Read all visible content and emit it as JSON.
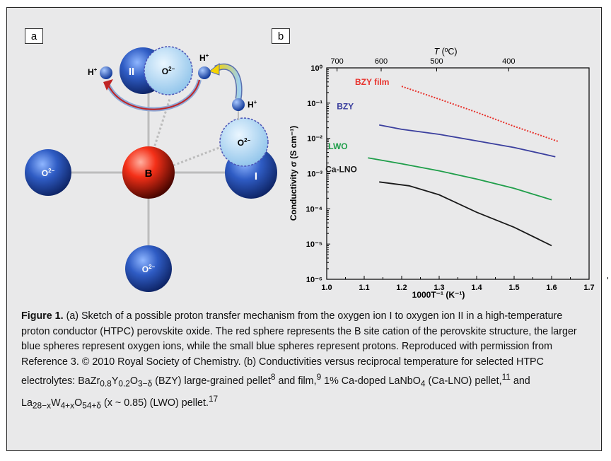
{
  "panel_a": {
    "label": "a",
    "atoms": {
      "b_cation": "B",
      "oxygen_i_label": "I",
      "oxygen_ii_label": "II",
      "oxygen_charge": "O",
      "charge_sup": "2−",
      "proton": "H",
      "proton_sup": "+"
    }
  },
  "panel_b": {
    "label": "b",
    "top_axis_label": "T",
    "top_axis_unit": " (ºC)",
    "top_ticks": [
      "700",
      "600",
      "500",
      "400"
    ],
    "ylabel": "Conductivity σ (S cm⁻¹)",
    "xlabel": "1000T⁻¹ (K⁻¹)"
  },
  "chart_data": {
    "type": "line",
    "x_scale": "linear",
    "y_scale": "log",
    "xlim": [
      1.0,
      1.7
    ],
    "ylim": [
      1e-06,
      1
    ],
    "x_ticks": [
      "1.0",
      "1.1",
      "1.2",
      "1.3",
      "1.4",
      "1.5",
      "1.6",
      "1.7"
    ],
    "y_ticks": [
      "10⁰",
      "10⁻¹",
      "10⁻²",
      "10⁻³",
      "10⁻⁴",
      "10⁻⁵",
      "10⁻⁶"
    ],
    "top_axis_ticks_celsius": [
      700,
      600,
      500,
      400
    ],
    "series": [
      {
        "name": "BZY film",
        "color": "#e8312b",
        "dashed": true,
        "x": [
          1.2,
          1.3,
          1.4,
          1.5,
          1.62
        ],
        "y": [
          0.3,
          0.13,
          0.055,
          0.022,
          0.008
        ]
      },
      {
        "name": "BZY",
        "color": "#3b3f9e",
        "dashed": false,
        "x": [
          1.14,
          1.2,
          1.3,
          1.4,
          1.5,
          1.61
        ],
        "y": [
          0.024,
          0.018,
          0.013,
          0.0085,
          0.0055,
          0.003
        ]
      },
      {
        "name": "LWO",
        "color": "#1f9e4a",
        "dashed": false,
        "x": [
          1.11,
          1.2,
          1.3,
          1.4,
          1.5,
          1.6
        ],
        "y": [
          0.0028,
          0.0019,
          0.0012,
          0.0007,
          0.00038,
          0.00018
        ]
      },
      {
        "name": "Ca-LNO",
        "color": "#1a1a1a",
        "dashed": false,
        "x": [
          1.14,
          1.22,
          1.3,
          1.4,
          1.5,
          1.6
        ],
        "y": [
          0.00058,
          0.00045,
          0.00025,
          8e-05,
          3e-05,
          9e-06
        ]
      }
    ]
  },
  "caption": {
    "title": "Figure 1.",
    "text_a": " (a) Sketch of a possible proton transfer mechanism from the oxygen ion I to oxygen ion II in a high-temperature proton conductor (HTPC) perovskite oxide. The red sphere represents the B site cation of the perovskite structure, the larger blue spheres represent oxygen ions, while the small blue spheres represent protons. Reproduced with permission from Reference 3. © 2010 Royal Society of Chemistry. (b) Conductivities versus reciprocal temperature for selected HTPC electrolytes: ",
    "bzy_formula_1": "BaZr",
    "bzy_sub_1": "0.8",
    "bzy_formula_2": "Y",
    "bzy_sub_2": "0.2",
    "bzy_formula_3": "O",
    "bzy_sub_3": "3−δ",
    "text_b": " (BZY) large-grained pellet",
    "ref_8": "8",
    "text_c": " and film,",
    "ref_9": "9",
    "text_d": " 1% Ca-doped LaNbO",
    "lno_sub": "4",
    "text_e": " (Ca-LNO) pellet,",
    "ref_11": "11",
    "text_f": " and La",
    "lwo_sub_1": "28−x",
    "text_g": "W",
    "lwo_sub_2": "4+x",
    "text_h": "O",
    "lwo_sub_3": "54+δ",
    "text_i": " (x ~ 0.85) (LWO) pellet.",
    "ref_17": "17"
  }
}
